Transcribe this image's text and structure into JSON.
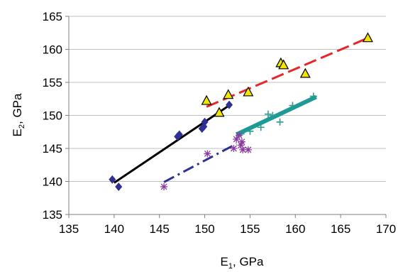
{
  "chart_data": {
    "type": "scatter",
    "title": "",
    "xlabel_main": "E",
    "xlabel_sub": "1",
    "xlabel_rest": ", GPa",
    "ylabel_main": "E",
    "ylabel_sub": "2",
    "ylabel_rest": ", GPa",
    "xlim": [
      135,
      170
    ],
    "ylim": [
      135,
      165
    ],
    "xticks": [
      135,
      140,
      145,
      150,
      155,
      160,
      165,
      170
    ],
    "yticks": [
      135,
      140,
      145,
      150,
      155,
      160,
      165
    ],
    "grid": "horizontal",
    "legend": "none",
    "series": [
      {
        "marker": "diamond",
        "color": "#2e3192",
        "points": [
          [
            139.8,
            140.3
          ],
          [
            140.5,
            139.2
          ],
          [
            147.0,
            146.8
          ],
          [
            147.2,
            147.1
          ],
          [
            149.7,
            148.0
          ],
          [
            149.9,
            148.3
          ],
          [
            150.0,
            149.0
          ],
          [
            152.7,
            151.6
          ]
        ],
        "fit": {
          "color": "#000000",
          "style": "solid",
          "from": [
            140.0,
            139.8
          ],
          "to": [
            152.8,
            151.6
          ]
        }
      },
      {
        "marker": "triangle",
        "color": "#f2e600",
        "stroke": "#000000",
        "points": [
          [
            150.2,
            152.2
          ],
          [
            151.6,
            150.4
          ],
          [
            152.6,
            153.1
          ],
          [
            154.8,
            153.5
          ],
          [
            158.4,
            157.9
          ],
          [
            158.7,
            157.6
          ],
          [
            161.1,
            156.3
          ],
          [
            168.0,
            161.7
          ]
        ],
        "fit": {
          "color": "#e8262a",
          "style": "dashed",
          "from": [
            150.2,
            151.3
          ],
          "to": [
            167.8,
            161.6
          ]
        }
      },
      {
        "marker": "plus",
        "color": "#2a9d8f",
        "points": [
          [
            154.0,
            147.2
          ],
          [
            155.0,
            147.6
          ],
          [
            156.2,
            148.2
          ],
          [
            157.0,
            150.2
          ],
          [
            157.5,
            150.0
          ],
          [
            158.3,
            149.0
          ],
          [
            159.7,
            151.5
          ],
          [
            162.0,
            152.9
          ]
        ],
        "fit": {
          "color": "#1c9a96",
          "style": "solid",
          "from": [
            153.5,
            147.1
          ],
          "to": [
            162.3,
            152.8
          ]
        }
      },
      {
        "marker": "asterisk",
        "color": "#8b3a9e",
        "points": [
          [
            145.5,
            139.2
          ],
          [
            150.3,
            144.2
          ],
          [
            153.2,
            145.0
          ],
          [
            153.5,
            146.4
          ],
          [
            153.8,
            147.0
          ],
          [
            154.0,
            145.5
          ],
          [
            154.2,
            144.8
          ],
          [
            154.8,
            144.8
          ],
          [
            154.1,
            146.0
          ]
        ],
        "fit": {
          "color": "#2e3192",
          "style": "dashdot",
          "from": [
            145.5,
            139.9
          ],
          "to": [
            153.5,
            145.7
          ]
        }
      }
    ]
  }
}
